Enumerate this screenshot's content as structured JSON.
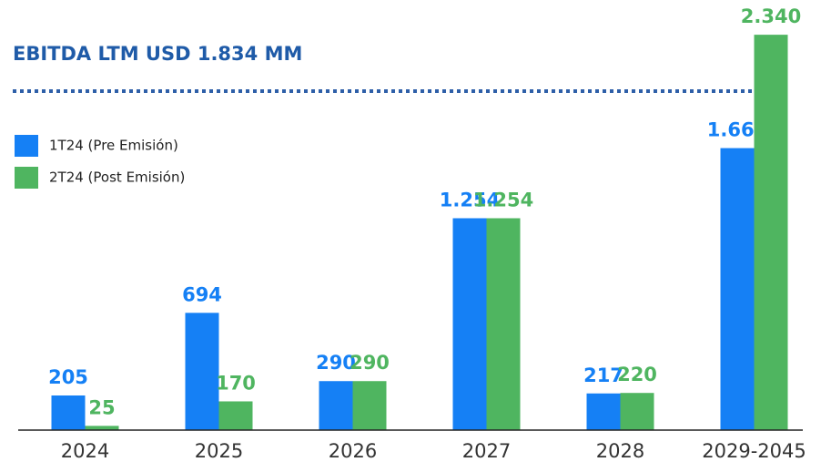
{
  "chart_data": {
    "type": "bar",
    "title": "EBITDA LTM USD 1.834 MM",
    "categories": [
      "2024",
      "2025",
      "2026",
      "2027",
      "2028",
      "2029-2045"
    ],
    "series": [
      {
        "name": "1T24 (Pre Emisión)",
        "color": "#1580f5",
        "values": [
          205,
          694,
          290,
          1254,
          217,
          1669
        ],
        "value_labels": [
          "205",
          "694",
          "290",
          "1.254",
          "217",
          "1.669"
        ]
      },
      {
        "name": "2T24 (Post Emisión)",
        "color": "#4fb560",
        "values": [
          25,
          170,
          290,
          1254,
          220,
          2340
        ],
        "value_labels": [
          "25",
          "170",
          "290",
          "1.254",
          "220",
          "2.340"
        ]
      }
    ],
    "ylim": [
      0,
      2400
    ],
    "legend": "top-left"
  }
}
